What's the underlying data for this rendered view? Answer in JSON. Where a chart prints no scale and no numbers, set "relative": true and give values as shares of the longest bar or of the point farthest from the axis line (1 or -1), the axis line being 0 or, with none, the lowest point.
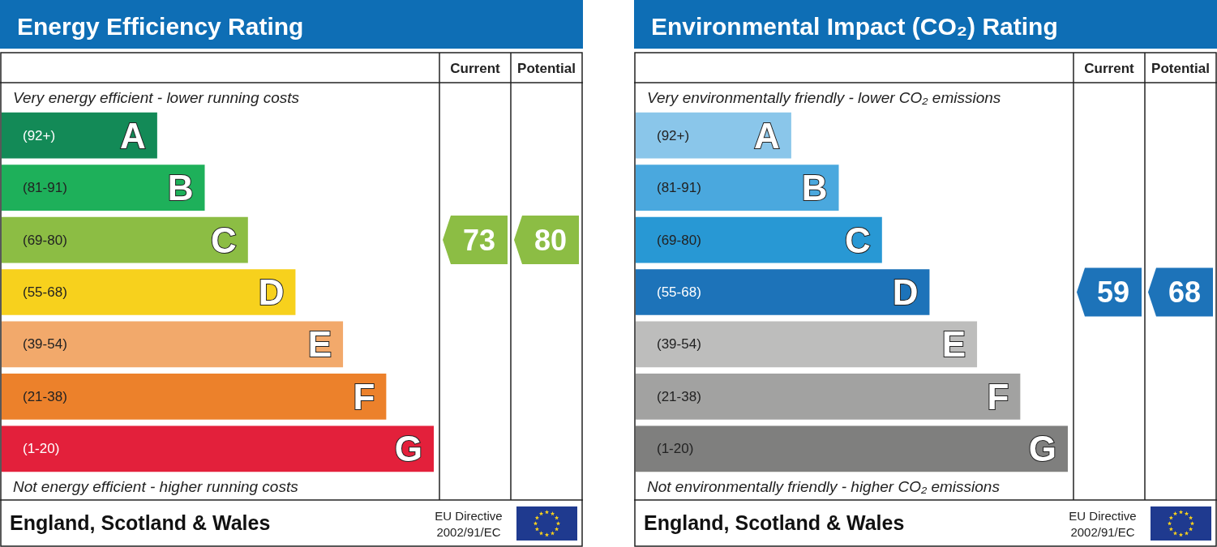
{
  "chart_data": [
    {
      "type": "bar",
      "orientation": "horizontal",
      "relative": true,
      "title": "Energy Efficiency Rating",
      "categories": [
        "(92+)",
        "(81-91)",
        "(69-80)",
        "(55-68)",
        "(39-54)",
        "(21-38)",
        "(1-20)"
      ],
      "values": [
        0.36,
        0.47,
        0.57,
        0.68,
        0.79,
        0.89,
        1
      ],
      "colors": [
        "#138a57",
        "#1eb05a",
        "#8cbd44",
        "#f7d11d",
        "#f2a96b",
        "#ec812b",
        "#e3203b"
      ],
      "annotations": [
        "Very energy efficient - lower running costs",
        "Not energy efficient - higher running costs",
        "Current",
        "Potential",
        "England, Scotland & Wales",
        "EU Directive\n2002/91/EC",
        "A",
        "B",
        "C",
        "D",
        "E",
        "F",
        "G",
        "73",
        "80"
      ]
    },
    {
      "type": "bar",
      "orientation": "horizontal",
      "relative": true,
      "title": "Environmental Impact (CO₂) Rating",
      "categories": [
        "(92+)",
        "(81-91)",
        "(69-80)",
        "(55-68)",
        "(39-54)",
        "(21-38)",
        "(1-20)"
      ],
      "values": [
        0.36,
        0.47,
        0.57,
        0.68,
        0.79,
        0.89,
        1
      ],
      "colors": [
        "#8ac6ea",
        "#4aa8de",
        "#2898d4",
        "#1d73b9",
        "#bdbdbc",
        "#a2a2a1",
        "#7f7f7e"
      ],
      "annotations": [
        "Very environmentally friendly - lower CO₂ emissions",
        "Not environmentally friendly - higher CO₂ emissions",
        "Current",
        "Potential",
        "England, Scotland & Wales",
        "EU Directive\n2002/91/EC",
        "A",
        "B",
        "C",
        "D",
        "E",
        "F",
        "G",
        "59",
        "68"
      ]
    }
  ]
}
